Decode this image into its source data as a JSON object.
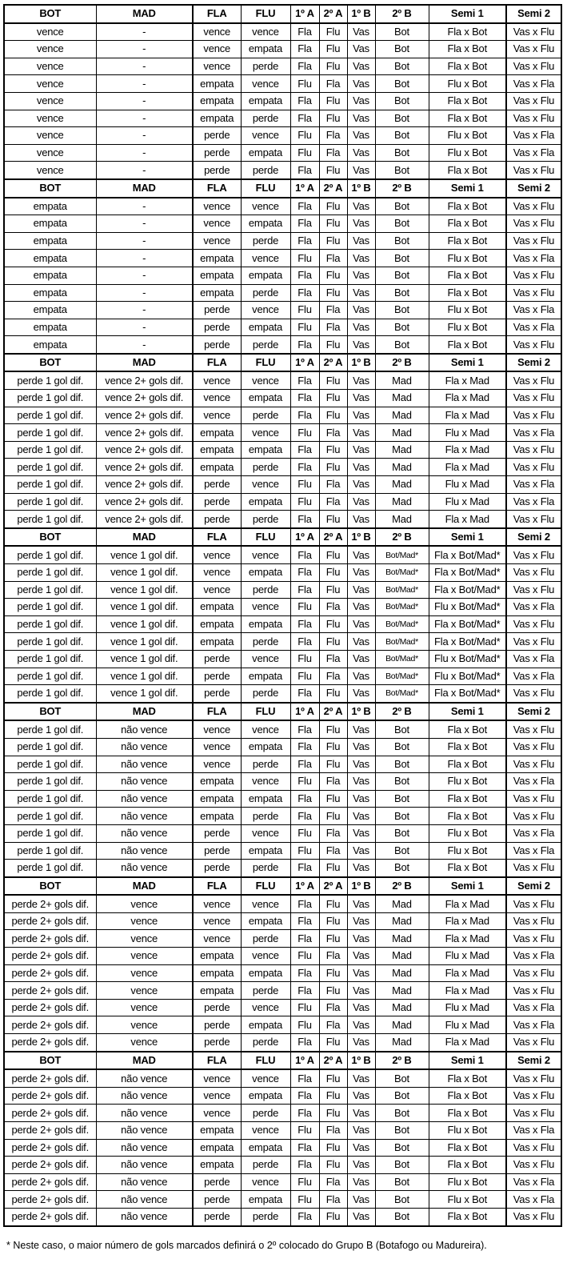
{
  "headers": [
    "BOT",
    "MAD",
    "FLA",
    "FLU",
    "1º A",
    "2º A",
    "1º B",
    "2º B",
    "Semi 1",
    "Semi 2"
  ],
  "blocks": [
    {
      "rows": [
        [
          "vence",
          "-",
          "vence",
          "vence",
          "Fla",
          "Flu",
          "Vas",
          "Bot",
          "Fla x Bot",
          "Vas x Flu"
        ],
        [
          "vence",
          "-",
          "vence",
          "empata",
          "Fla",
          "Flu",
          "Vas",
          "Bot",
          "Fla x Bot",
          "Vas x Flu"
        ],
        [
          "vence",
          "-",
          "vence",
          "perde",
          "Fla",
          "Flu",
          "Vas",
          "Bot",
          "Fla x Bot",
          "Vas x Flu"
        ],
        [
          "vence",
          "-",
          "empata",
          "vence",
          "Flu",
          "Fla",
          "Vas",
          "Bot",
          "Flu x Bot",
          "Vas x Fla"
        ],
        [
          "vence",
          "-",
          "empata",
          "empata",
          "Fla",
          "Flu",
          "Vas",
          "Bot",
          "Fla x Bot",
          "Vas x Flu"
        ],
        [
          "vence",
          "-",
          "empata",
          "perde",
          "Fla",
          "Flu",
          "Vas",
          "Bot",
          "Fla x Bot",
          "Vas x Flu"
        ],
        [
          "vence",
          "-",
          "perde",
          "vence",
          "Flu",
          "Fla",
          "Vas",
          "Bot",
          "Flu x Bot",
          "Vas x Fla"
        ],
        [
          "vence",
          "-",
          "perde",
          "empata",
          "Flu",
          "Fla",
          "Vas",
          "Bot",
          "Flu x Bot",
          "Vas x Fla"
        ],
        [
          "vence",
          "-",
          "perde",
          "perde",
          "Fla",
          "Flu",
          "Vas",
          "Bot",
          "Fla x Bot",
          "Vas x Flu"
        ]
      ]
    },
    {
      "rows": [
        [
          "empata",
          "-",
          "vence",
          "vence",
          "Fla",
          "Flu",
          "Vas",
          "Bot",
          "Fla x Bot",
          "Vas x Flu"
        ],
        [
          "empata",
          "-",
          "vence",
          "empata",
          "Fla",
          "Flu",
          "Vas",
          "Bot",
          "Fla x Bot",
          "Vas x Flu"
        ],
        [
          "empata",
          "-",
          "vence",
          "perde",
          "Fla",
          "Flu",
          "Vas",
          "Bot",
          "Fla x Bot",
          "Vas x Flu"
        ],
        [
          "empata",
          "-",
          "empata",
          "vence",
          "Flu",
          "Fla",
          "Vas",
          "Bot",
          "Flu x Bot",
          "Vas x Fla"
        ],
        [
          "empata",
          "-",
          "empata",
          "empata",
          "Fla",
          "Flu",
          "Vas",
          "Bot",
          "Fla x Bot",
          "Vas x Flu"
        ],
        [
          "empata",
          "-",
          "empata",
          "perde",
          "Fla",
          "Flu",
          "Vas",
          "Bot",
          "Fla x Bot",
          "Vas x Flu"
        ],
        [
          "empata",
          "-",
          "perde",
          "vence",
          "Flu",
          "Fla",
          "Vas",
          "Bot",
          "Flu x Bot",
          "Vas x Fla"
        ],
        [
          "empata",
          "-",
          "perde",
          "empata",
          "Flu",
          "Fla",
          "Vas",
          "Bot",
          "Flu x Bot",
          "Vas x Fla"
        ],
        [
          "empata",
          "-",
          "perde",
          "perde",
          "Fla",
          "Flu",
          "Vas",
          "Bot",
          "Fla x Bot",
          "Vas x Flu"
        ]
      ]
    },
    {
      "rows": [
        [
          "perde 1 gol dif.",
          "vence 2+ gols dif.",
          "vence",
          "vence",
          "Fla",
          "Flu",
          "Vas",
          "Mad",
          "Fla x Mad",
          "Vas x Flu"
        ],
        [
          "perde 1 gol dif.",
          "vence 2+ gols dif.",
          "vence",
          "empata",
          "Fla",
          "Flu",
          "Vas",
          "Mad",
          "Fla x Mad",
          "Vas x Flu"
        ],
        [
          "perde 1 gol dif.",
          "vence 2+ gols dif.",
          "vence",
          "perde",
          "Fla",
          "Flu",
          "Vas",
          "Mad",
          "Fla x Mad",
          "Vas x Flu"
        ],
        [
          "perde 1 gol dif.",
          "vence 2+ gols dif.",
          "empata",
          "vence",
          "Flu",
          "Fla",
          "Vas",
          "Mad",
          "Flu x Mad",
          "Vas x Fla"
        ],
        [
          "perde 1 gol dif.",
          "vence 2+ gols dif.",
          "empata",
          "empata",
          "Fla",
          "Flu",
          "Vas",
          "Mad",
          "Fla x Mad",
          "Vas x Flu"
        ],
        [
          "perde 1 gol dif.",
          "vence 2+ gols dif.",
          "empata",
          "perde",
          "Fla",
          "Flu",
          "Vas",
          "Mad",
          "Fla x Mad",
          "Vas x Flu"
        ],
        [
          "perde 1 gol dif.",
          "vence 2+ gols dif.",
          "perde",
          "vence",
          "Flu",
          "Fla",
          "Vas",
          "Mad",
          "Flu x Mad",
          "Vas x Fla"
        ],
        [
          "perde 1 gol dif.",
          "vence 2+ gols dif.",
          "perde",
          "empata",
          "Flu",
          "Fla",
          "Vas",
          "Mad",
          "Flu x Mad",
          "Vas x Fla"
        ],
        [
          "perde 1 gol dif.",
          "vence 2+ gols dif.",
          "perde",
          "perde",
          "Fla",
          "Flu",
          "Vas",
          "Mad",
          "Fla x Mad",
          "Vas x Flu"
        ]
      ]
    },
    {
      "rows": [
        [
          "perde 1 gol dif.",
          "vence 1 gol dif.",
          "vence",
          "vence",
          "Fla",
          "Flu",
          "Vas",
          "Bot/Mad*",
          "Fla x Bot/Mad*",
          "Vas x Flu"
        ],
        [
          "perde 1 gol dif.",
          "vence 1 gol dif.",
          "vence",
          "empata",
          "Fla",
          "Flu",
          "Vas",
          "Bot/Mad*",
          "Fla x Bot/Mad*",
          "Vas x Flu"
        ],
        [
          "perde 1 gol dif.",
          "vence 1 gol dif.",
          "vence",
          "perde",
          "Fla",
          "Flu",
          "Vas",
          "Bot/Mad*",
          "Fla x Bot/Mad*",
          "Vas x Flu"
        ],
        [
          "perde 1 gol dif.",
          "vence 1 gol dif.",
          "empata",
          "vence",
          "Flu",
          "Fla",
          "Vas",
          "Bot/Mad*",
          "Flu x Bot/Mad*",
          "Vas x Fla"
        ],
        [
          "perde 1 gol dif.",
          "vence 1 gol dif.",
          "empata",
          "empata",
          "Fla",
          "Flu",
          "Vas",
          "Bot/Mad*",
          "Fla x Bot/Mad*",
          "Vas x Flu"
        ],
        [
          "perde 1 gol dif.",
          "vence 1 gol dif.",
          "empata",
          "perde",
          "Fla",
          "Flu",
          "Vas",
          "Bot/Mad*",
          "Fla x Bot/Mad*",
          "Vas x Flu"
        ],
        [
          "perde 1 gol dif.",
          "vence 1 gol dif.",
          "perde",
          "vence",
          "Flu",
          "Fla",
          "Vas",
          "Bot/Mad*",
          "Flu x Bot/Mad*",
          "Vas x Fla"
        ],
        [
          "perde 1 gol dif.",
          "vence 1 gol dif.",
          "perde",
          "empata",
          "Flu",
          "Fla",
          "Vas",
          "Bot/Mad*",
          "Flu x Bot/Mad*",
          "Vas x Fla"
        ],
        [
          "perde 1 gol dif.",
          "vence 1 gol dif.",
          "perde",
          "perde",
          "Fla",
          "Flu",
          "Vas",
          "Bot/Mad*",
          "Fla x Bot/Mad*",
          "Vas x Flu"
        ]
      ]
    },
    {
      "rows": [
        [
          "perde 1 gol dif.",
          "não vence",
          "vence",
          "vence",
          "Fla",
          "Flu",
          "Vas",
          "Bot",
          "Fla x Bot",
          "Vas x Flu"
        ],
        [
          "perde 1 gol dif.",
          "não vence",
          "vence",
          "empata",
          "Fla",
          "Flu",
          "Vas",
          "Bot",
          "Fla x Bot",
          "Vas x Flu"
        ],
        [
          "perde 1 gol dif.",
          "não vence",
          "vence",
          "perde",
          "Fla",
          "Flu",
          "Vas",
          "Bot",
          "Fla x Bot",
          "Vas x Flu"
        ],
        [
          "perde 1 gol dif.",
          "não vence",
          "empata",
          "vence",
          "Flu",
          "Fla",
          "Vas",
          "Bot",
          "Flu x Bot",
          "Vas x Fla"
        ],
        [
          "perde 1 gol dif.",
          "não vence",
          "empata",
          "empata",
          "Fla",
          "Flu",
          "Vas",
          "Bot",
          "Fla x Bot",
          "Vas x Flu"
        ],
        [
          "perde 1 gol dif.",
          "não vence",
          "empata",
          "perde",
          "Fla",
          "Flu",
          "Vas",
          "Bot",
          "Fla x Bot",
          "Vas x Flu"
        ],
        [
          "perde 1 gol dif.",
          "não vence",
          "perde",
          "vence",
          "Flu",
          "Fla",
          "Vas",
          "Bot",
          "Flu x Bot",
          "Vas x Fla"
        ],
        [
          "perde 1 gol dif.",
          "não vence",
          "perde",
          "empata",
          "Flu",
          "Fla",
          "Vas",
          "Bot",
          "Flu x Bot",
          "Vas x Fla"
        ],
        [
          "perde 1 gol dif.",
          "não vence",
          "perde",
          "perde",
          "Fla",
          "Flu",
          "Vas",
          "Bot",
          "Fla x Bot",
          "Vas x Flu"
        ]
      ]
    },
    {
      "rows": [
        [
          "perde 2+ gols dif.",
          "vence",
          "vence",
          "vence",
          "Fla",
          "Flu",
          "Vas",
          "Mad",
          "Fla x Mad",
          "Vas x Flu"
        ],
        [
          "perde 2+ gols dif.",
          "vence",
          "vence",
          "empata",
          "Fla",
          "Flu",
          "Vas",
          "Mad",
          "Fla x Mad",
          "Vas x Flu"
        ],
        [
          "perde 2+ gols dif.",
          "vence",
          "vence",
          "perde",
          "Fla",
          "Flu",
          "Vas",
          "Mad",
          "Fla x Mad",
          "Vas x Flu"
        ],
        [
          "perde 2+ gols dif.",
          "vence",
          "empata",
          "vence",
          "Flu",
          "Fla",
          "Vas",
          "Mad",
          "Flu x Mad",
          "Vas x Fla"
        ],
        [
          "perde 2+ gols dif.",
          "vence",
          "empata",
          "empata",
          "Fla",
          "Flu",
          "Vas",
          "Mad",
          "Fla x Mad",
          "Vas x Flu"
        ],
        [
          "perde 2+ gols dif.",
          "vence",
          "empata",
          "perde",
          "Fla",
          "Flu",
          "Vas",
          "Mad",
          "Fla x Mad",
          "Vas x Flu"
        ],
        [
          "perde 2+ gols dif.",
          "vence",
          "perde",
          "vence",
          "Flu",
          "Fla",
          "Vas",
          "Mad",
          "Flu x Mad",
          "Vas x Fla"
        ],
        [
          "perde 2+ gols dif.",
          "vence",
          "perde",
          "empata",
          "Flu",
          "Fla",
          "Vas",
          "Mad",
          "Flu x Mad",
          "Vas x Fla"
        ],
        [
          "perde 2+ gols dif.",
          "vence",
          "perde",
          "perde",
          "Fla",
          "Flu",
          "Vas",
          "Mad",
          "Fla x Mad",
          "Vas x Flu"
        ]
      ]
    },
    {
      "rows": [
        [
          "perde 2+ gols dif.",
          "não vence",
          "vence",
          "vence",
          "Fla",
          "Flu",
          "Vas",
          "Bot",
          "Fla x Bot",
          "Vas x Flu"
        ],
        [
          "perde 2+ gols dif.",
          "não vence",
          "vence",
          "empata",
          "Fla",
          "Flu",
          "Vas",
          "Bot",
          "Fla x Bot",
          "Vas x Flu"
        ],
        [
          "perde 2+ gols dif.",
          "não vence",
          "vence",
          "perde",
          "Fla",
          "Flu",
          "Vas",
          "Bot",
          "Fla x Bot",
          "Vas x Flu"
        ],
        [
          "perde 2+ gols dif.",
          "não vence",
          "empata",
          "vence",
          "Flu",
          "Fla",
          "Vas",
          "Bot",
          "Flu x Bot",
          "Vas x Fla"
        ],
        [
          "perde 2+ gols dif.",
          "não vence",
          "empata",
          "empata",
          "Fla",
          "Flu",
          "Vas",
          "Bot",
          "Fla x Bot",
          "Vas x Flu"
        ],
        [
          "perde 2+ gols dif.",
          "não vence",
          "empata",
          "perde",
          "Fla",
          "Flu",
          "Vas",
          "Bot",
          "Fla x Bot",
          "Vas x Flu"
        ],
        [
          "perde 2+ gols dif.",
          "não vence",
          "perde",
          "vence",
          "Flu",
          "Fla",
          "Vas",
          "Bot",
          "Flu x Bot",
          "Vas x Fla"
        ],
        [
          "perde 2+ gols dif.",
          "não vence",
          "perde",
          "empata",
          "Flu",
          "Fla",
          "Vas",
          "Bot",
          "Flu x Bot",
          "Vas x Fla"
        ],
        [
          "perde 2+ gols dif.",
          "não vence",
          "perde",
          "perde",
          "Fla",
          "Flu",
          "Vas",
          "Bot",
          "Fla x Bot",
          "Vas x Flu"
        ]
      ]
    }
  ],
  "footnote": "* Neste caso, o maior número de gols marcados definirá o 2º colocado do Grupo B (Botafogo ou Madureira)."
}
